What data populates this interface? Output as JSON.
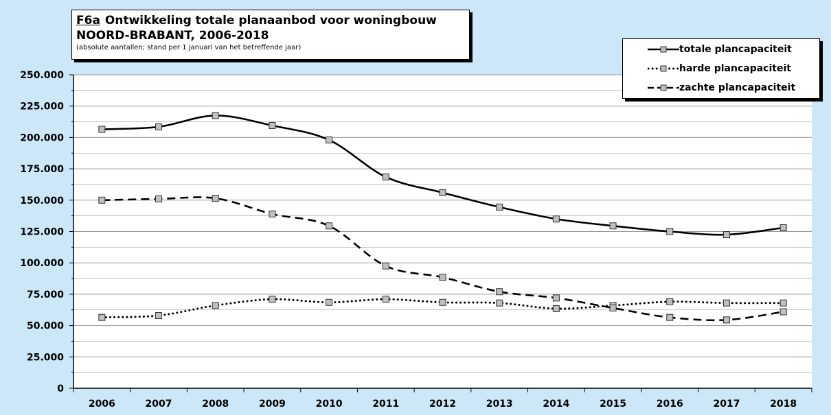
{
  "title": {
    "code": "F6a",
    "line1": "Ontwikkeling totale planaanbod voor woningbouw",
    "line2": "NOORD-BRABANT, 2006-2018",
    "subtitle": "(absolute aantallen; stand per 1 januari van het betreffende jaar)"
  },
  "legend": [
    {
      "label": "totale plancapaciteit",
      "style": "solid"
    },
    {
      "label": "harde plancapaciteit",
      "style": "dotted"
    },
    {
      "label": "zachte plancapaciteit",
      "style": "dashed"
    }
  ],
  "colors": {
    "background": "#cce8f8",
    "plot": "#ffffff",
    "line": "#000000",
    "marker_fill": "#c0c0c0",
    "grid": "#9a9a9a"
  },
  "chart_data": {
    "type": "line",
    "categories": [
      "2006",
      "2007",
      "2008",
      "2009",
      "2010",
      "2011",
      "2012",
      "2013",
      "2014",
      "2015",
      "2016",
      "2017",
      "2018"
    ],
    "series": [
      {
        "name": "totale plancapaciteit",
        "style": "solid",
        "values": [
          206500,
          208500,
          217500,
          209500,
          198000,
          168500,
          156000,
          144500,
          135000,
          129500,
          125000,
          122500,
          128000
        ]
      },
      {
        "name": "harde plancapaciteit",
        "style": "dotted",
        "values": [
          56500,
          58000,
          66000,
          71000,
          68500,
          71000,
          68500,
          68000,
          63500,
          66000,
          69000,
          68000,
          68000
        ]
      },
      {
        "name": "zachte plancapaciteit",
        "style": "dashed",
        "values": [
          150000,
          151000,
          151500,
          139000,
          129500,
          97500,
          88500,
          77000,
          72000,
          64000,
          56500,
          54500,
          61000
        ]
      }
    ],
    "yticks": [
      "0",
      "25.000",
      "50.000",
      "75.000",
      "100.000",
      "125.000",
      "150.000",
      "175.000",
      "200.000",
      "225.000",
      "250.000"
    ],
    "ylim": [
      0,
      250000
    ],
    "ytick_step": 25000,
    "grid": true,
    "legend_position": "top-right"
  }
}
